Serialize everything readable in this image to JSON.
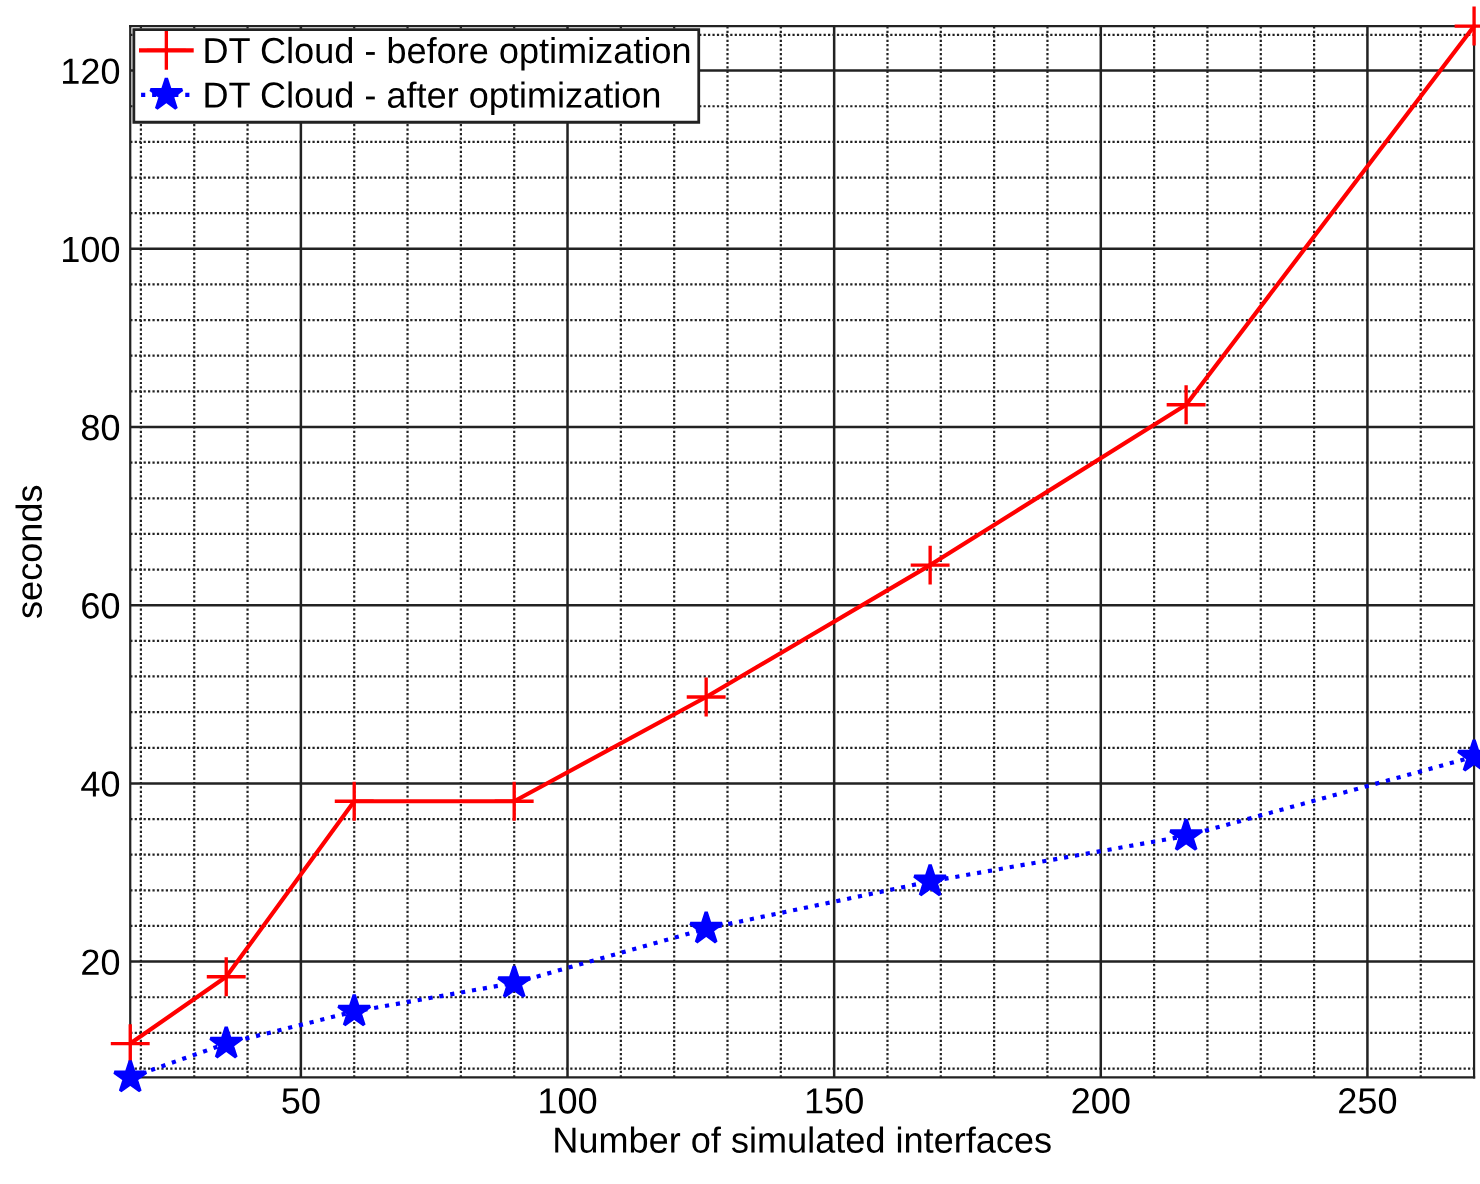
{
  "chart_data": {
    "type": "line",
    "xlabel": "Number of simulated interfaces",
    "ylabel": "seconds",
    "x": [
      18,
      36,
      60,
      90,
      126,
      168,
      216,
      270
    ],
    "series": [
      {
        "name": "DT Cloud - before optimization",
        "color": "#ff0000",
        "marker": "cross",
        "line_style": "solid",
        "values": [
          10.8,
          18.3,
          38.0,
          38.0,
          49.7,
          64.5,
          82.5,
          125
        ]
      },
      {
        "name": "DT Cloud - after optimization",
        "color": "#0000ff",
        "marker": "star",
        "line_style": "dotted",
        "values": [
          7,
          10.8,
          14.4,
          17.6,
          23.7,
          29.0,
          34.1,
          43.0
        ]
      }
    ],
    "xlim": [
      18,
      270
    ],
    "ylim": [
      7,
      125
    ],
    "xticks": [
      50,
      100,
      150,
      200,
      250
    ],
    "yticks": [
      20,
      40,
      60,
      80,
      100,
      120
    ],
    "grid": true,
    "legend": "top left"
  }
}
